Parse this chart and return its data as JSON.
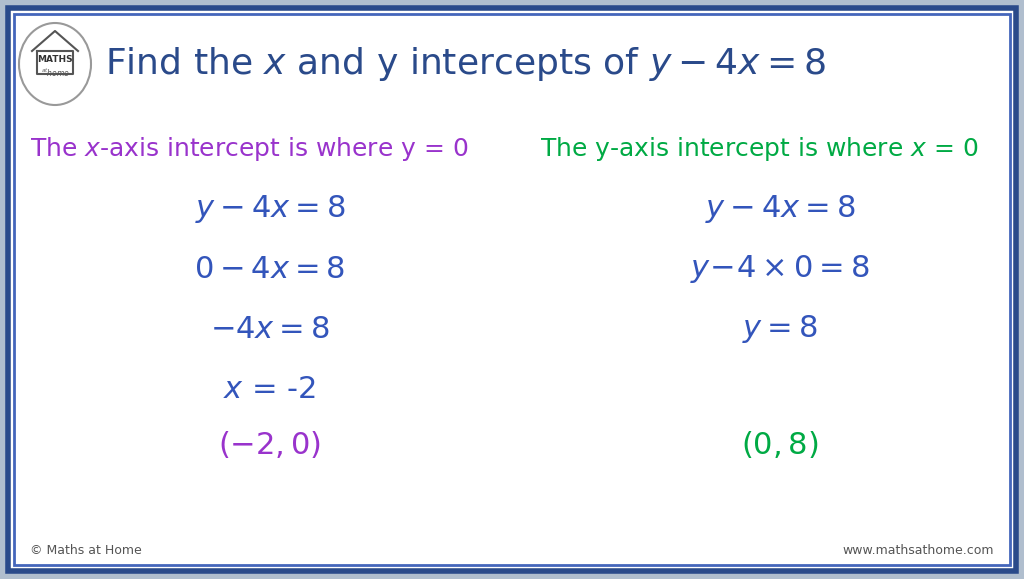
{
  "bg_outer": "#b0bece",
  "bg_inner": "#ffffff",
  "border_outer_color": "#2a4a8a",
  "border_inner_color": "#4466bb",
  "title_color": "#2a4a8a",
  "purple_color": "#9933cc",
  "green_color": "#00aa44",
  "blue_eq_color": "#3355bb",
  "title_text": "Find the $x$ and y intercepts of $y - 4x = 8$",
  "left_header": "The $x$-axis intercept is where y = 0",
  "right_header": "The y-axis intercept is where $x$ = 0",
  "footer_left": "© Maths at Home",
  "footer_right": "www.mathsathome.com"
}
